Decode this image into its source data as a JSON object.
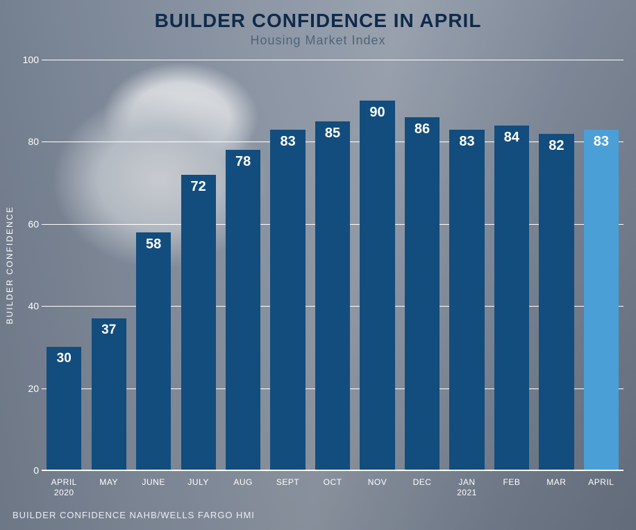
{
  "chart": {
    "type": "bar",
    "title": "BUILDER CONFIDENCE IN APRIL",
    "subtitle": "Housing Market Index",
    "ylabel": "BUILDER CONFIDENCE",
    "source": "BUILDER CONFIDENCE NAHB/WELLS FARGO HMI",
    "ylim": [
      0,
      100
    ],
    "ytick_step": 20,
    "yticks": [
      0,
      20,
      40,
      60,
      80,
      100
    ],
    "grid_color": "#ffffff",
    "background_photo": true,
    "title_color": "#0f2a4a",
    "subtitle_color": "#4f6478",
    "axis_text_color": "#ffffff",
    "title_fontsize": 28,
    "subtitle_fontsize": 18,
    "ytick_fontsize": 14,
    "xtick_fontsize": 12,
    "value_label_fontsize": 20,
    "value_label_color": "#ffffff",
    "bar_width": 0.78,
    "categories": [
      "APRIL\n2020",
      "MAY",
      "JUNE",
      "JULY",
      "AUG",
      "SEPT",
      "OCT",
      "NOV",
      "DEC",
      "JAN\n2021",
      "FEB",
      "MAR",
      "APRIL"
    ],
    "values": [
      30,
      37,
      58,
      72,
      78,
      83,
      85,
      90,
      86,
      83,
      84,
      82,
      83
    ],
    "bar_colors": [
      "#124d7d",
      "#124d7d",
      "#124d7d",
      "#124d7d",
      "#124d7d",
      "#124d7d",
      "#124d7d",
      "#124d7d",
      "#124d7d",
      "#124d7d",
      "#124d7d",
      "#124d7d",
      "#4a9fd6"
    ],
    "highlight_index": 12
  }
}
